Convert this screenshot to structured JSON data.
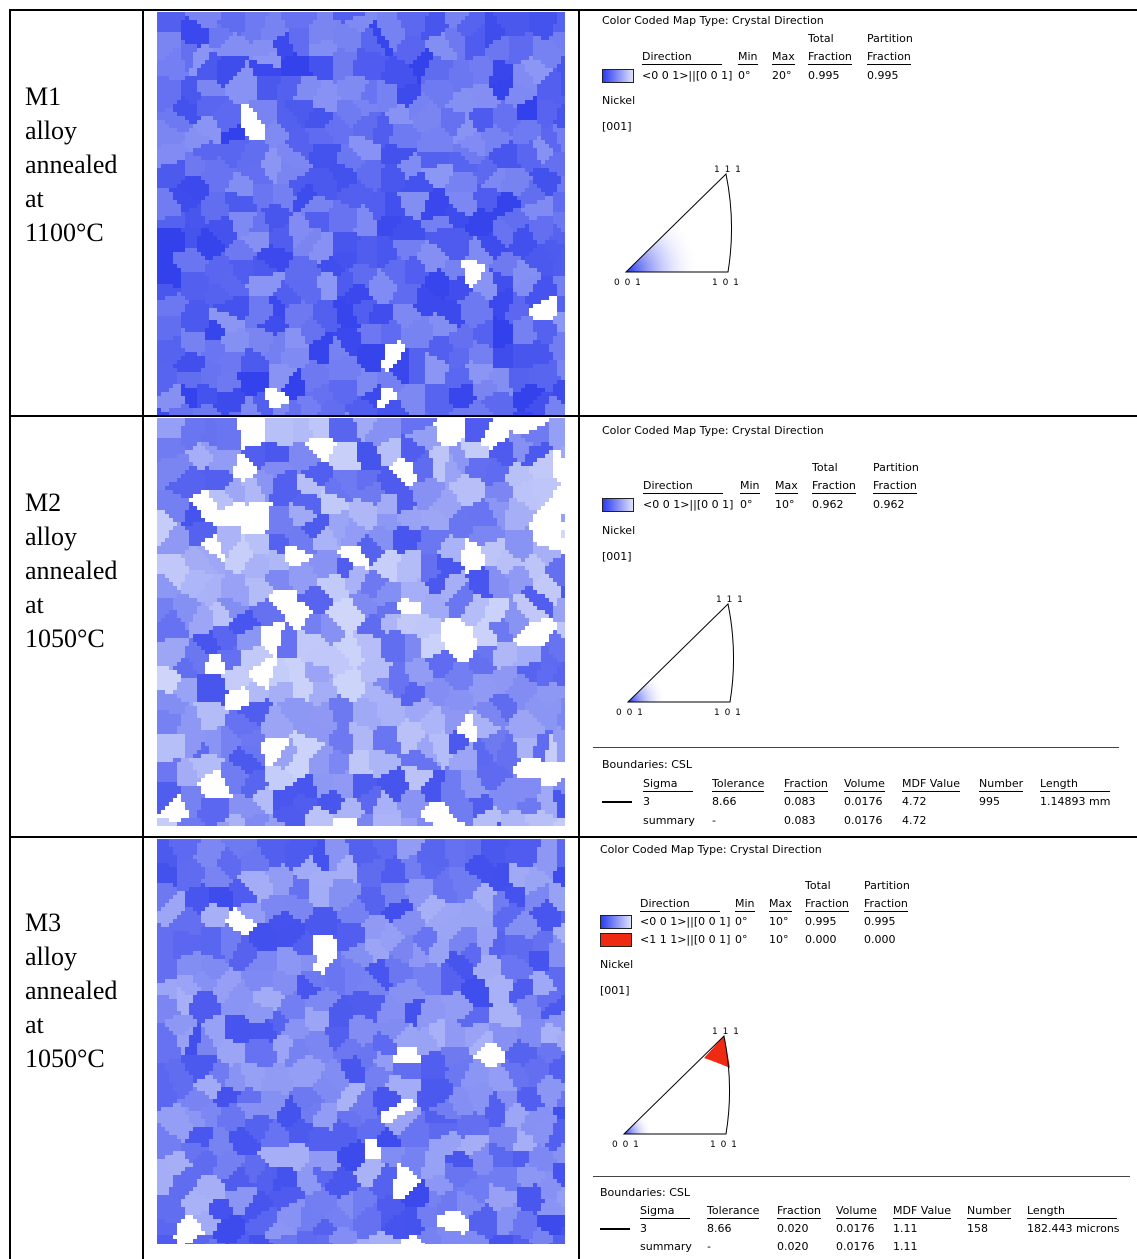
{
  "rows": [
    {
      "label": "M1\nalloy\nannealed\nat\n1100°C",
      "map": {
        "hue": "blue",
        "seed": 11,
        "white_fraction": 0.02
      },
      "legend": {
        "title": "Color Coded Map Type: Crystal Direction",
        "headers": {
          "direction": "Direction",
          "min": "Min",
          "max": "Max",
          "total": "Total",
          "total2": "Fraction",
          "partition": "Partition",
          "partition2": "Fraction"
        },
        "entries": [
          {
            "swatch": "#5a6bf2",
            "direction": "<0 0 1>||[0 0 1]",
            "min": "0°",
            "max": "20°",
            "total": "0.995",
            "partition": "0.995"
          }
        ],
        "material": "Nickel",
        "axis": "[001]",
        "ipf": {
          "top": "1 1 1",
          "left": "0 0 1",
          "right": "1 0 1",
          "shade": "blue",
          "extent": 0.42
        },
        "boundaries": null
      }
    },
    {
      "label": "M2\nalloy\nannealed\nat\n1050°C",
      "map": {
        "hue": "blue-light",
        "seed": 23,
        "white_fraction": 0.08
      },
      "legend": {
        "title": "Color Coded Map Type: Crystal Direction",
        "headers": {
          "direction": "Direction",
          "min": "Min",
          "max": "Max",
          "total": "Total",
          "total2": "Fraction",
          "partition": "Partition",
          "partition2": "Fraction"
        },
        "entries": [
          {
            "swatch": "#5a6bf2",
            "direction": "<0 0 1>||[0 0 1]",
            "min": "0°",
            "max": "10°",
            "total": "0.962",
            "partition": "0.962"
          }
        ],
        "material": "Nickel",
        "axis": "[001]",
        "ipf": {
          "top": "1 1 1",
          "left": "0 0 1",
          "right": "1 0 1",
          "shade": "blue",
          "extent": 0.22
        },
        "boundaries": {
          "title": "Boundaries: CSL",
          "headers": [
            "Sigma",
            "Tolerance",
            "Fraction",
            "Volume",
            "MDF Value",
            "Number",
            "Length"
          ],
          "row": [
            "3",
            "8.66",
            "0.083",
            "0.0176",
            "4.72",
            "995",
            "1.14893 mm"
          ],
          "summary": [
            "summary",
            "-",
            "0.083",
            "0.0176",
            "4.72"
          ]
        }
      }
    },
    {
      "label": "M3\nalloy\nannealed\nat\n1050°C",
      "map": {
        "hue": "blue-mid",
        "seed": 37,
        "white_fraction": 0.03
      },
      "legend": {
        "title": "Color Coded Map Type: Crystal Direction",
        "headers": {
          "direction": "Direction",
          "min": "Min",
          "max": "Max",
          "total": "Total",
          "total2": "Fraction",
          "partition": "Partition",
          "partition2": "Fraction"
        },
        "entries": [
          {
            "swatch": "#5a6bf2",
            "direction": "<0 0 1>||[0 0 1]",
            "min": "0°",
            "max": "10°",
            "total": "0.995",
            "partition": "0.995"
          },
          {
            "swatch": "#ee2a12",
            "direction": "<1 1 1>||[0 0 1]",
            "min": "0°",
            "max": "10°",
            "total": "0.000",
            "partition": "0.000"
          }
        ],
        "material": "Nickel",
        "axis": "[001]",
        "ipf": {
          "top": "1 1 1",
          "left": "0 0 1",
          "right": "1 0 1",
          "shade": "blue",
          "extent": 0.16,
          "red_cap": true
        },
        "boundaries": {
          "title": "Boundaries: CSL",
          "headers": [
            "Sigma",
            "Tolerance",
            "Fraction",
            "Volume",
            "MDF Value",
            "Number",
            "Length"
          ],
          "row": [
            "3",
            "8.66",
            "0.020",
            "0.0176",
            "1.11",
            "158",
            "182.443 microns"
          ],
          "summary": [
            "summary",
            "-",
            "0.020",
            "0.0176",
            "1.11"
          ]
        }
      }
    }
  ]
}
